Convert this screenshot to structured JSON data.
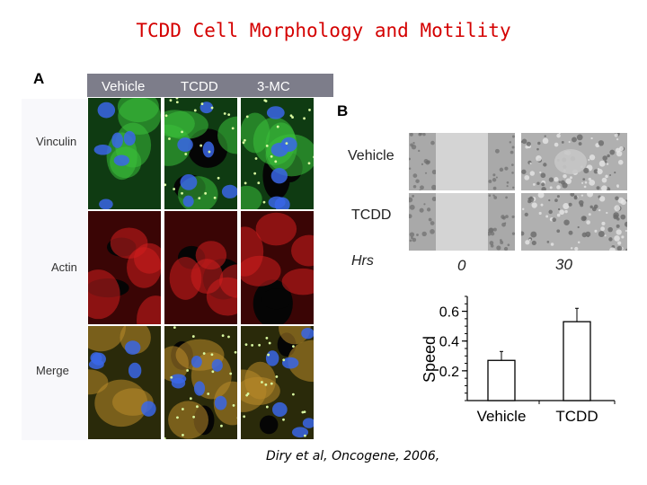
{
  "slide": {
    "title": "TCDD Cell Morphology and Motility"
  },
  "panel_a": {
    "letter": "A",
    "columns": [
      "Vehicle",
      "TCDD",
      "3-MC"
    ],
    "rows": [
      "Vinculin",
      "Actin",
      "Merge"
    ]
  },
  "panel_b": {
    "letter": "B",
    "rows": [
      "Vehicle",
      "TCDD"
    ],
    "hrs_label": "Hrs",
    "hrs_values": [
      "0",
      "30"
    ]
  },
  "citation": "Diry et al, Oncogene, 2006,",
  "chart_data": {
    "type": "bar",
    "categories": [
      "Vehicle",
      "TCDD"
    ],
    "values": [
      0.27,
      0.53
    ],
    "error": [
      0.06,
      0.09
    ],
    "ylabel": "Speed",
    "yticks": [
      "0.2",
      "0.4",
      "0.6"
    ],
    "ylim": [
      0,
      0.7
    ]
  },
  "colors": {
    "title": "#d40000",
    "vinculin": "#2bb82b",
    "actin": "#d41212",
    "nuclei": "#3a66e6"
  }
}
